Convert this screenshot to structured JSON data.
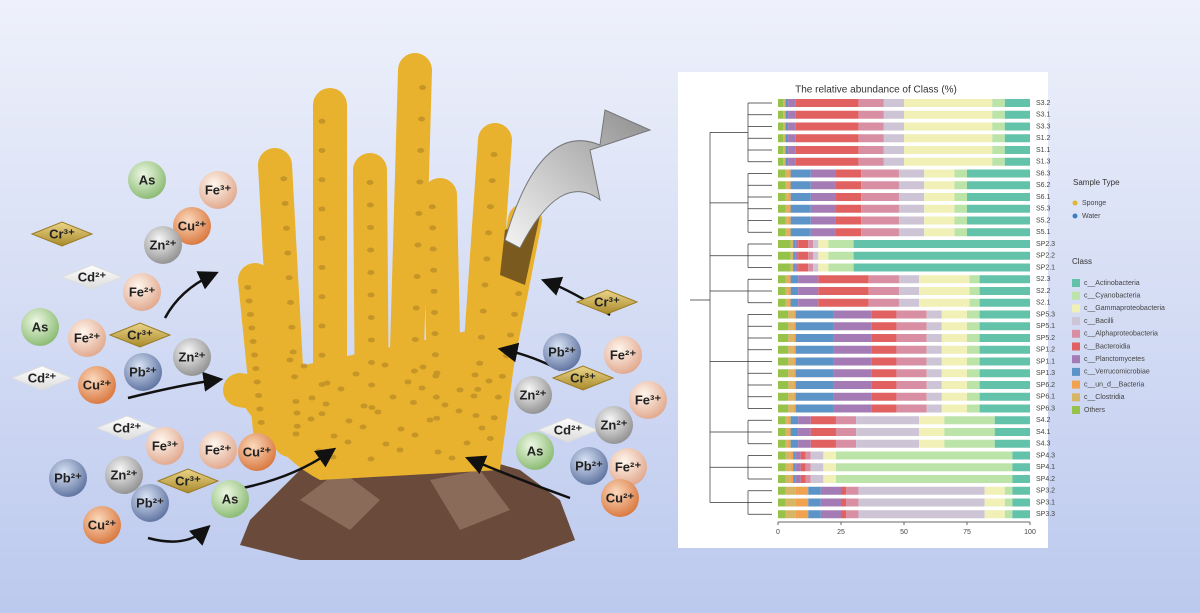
{
  "illustration": {
    "ions": [
      "As",
      "Fe³⁺",
      "Cu²⁺",
      "Cr³⁺",
      "Zn²⁺",
      "Cd²⁺",
      "Fe²⁺",
      "As",
      "Fe²⁺",
      "Cr³⁺",
      "Zn²⁺",
      "Pb²⁺",
      "Cd²⁺",
      "Cu²⁺",
      "Cd²⁺",
      "Fe³⁺",
      "Fe²⁺",
      "Cu²⁺",
      "Pb²⁺",
      "Zn²⁺",
      "Cr³⁺",
      "Pb²⁺",
      "As",
      "Cu²⁺",
      "Cr³⁺",
      "Pb²⁺",
      "Fe²⁺",
      "Cr³⁺",
      "Zn²⁺",
      "Fe³⁺",
      "Cd²⁺",
      "Zn²⁺",
      "As",
      "Pb²⁺",
      "Fe²⁺",
      "Cu²⁺"
    ]
  },
  "chart_data": {
    "type": "bar",
    "orientation": "horizontal",
    "stacked": true,
    "title": "The relative abundance of Class (%)",
    "categories": [
      "S3.2",
      "S3.1",
      "S3.3",
      "S1.2",
      "S1.1",
      "S1.3",
      "S6.3",
      "S6.2",
      "S6.1",
      "S5.3",
      "S5.2",
      "S5.1",
      "SP2.3",
      "SP2.2",
      "SP2.1",
      "S2.3",
      "S2.2",
      "S2.1",
      "SP5.3",
      "SP5.1",
      "SP5.2",
      "SP1.2",
      "SP1.1",
      "SP1.3",
      "SP6.2",
      "SP6.1",
      "SP6.3",
      "S4.2",
      "S4.1",
      "S4.3",
      "SP4.3",
      "SP4.1",
      "SP4.2",
      "SP3.2",
      "SP3.1",
      "SP3.3"
    ],
    "xlim": [
      0,
      100
    ],
    "xticks": [
      0,
      25,
      50,
      75,
      100
    ],
    "sample_type_legend": {
      "title": "Sample Type",
      "items": [
        {
          "name": "Sponge",
          "color": "#e3b52b"
        },
        {
          "name": "Water",
          "color": "#3d7fc4"
        }
      ]
    },
    "legend_title": "Class",
    "series": [
      {
        "name": "c__Actinobacteria",
        "color": "#63c3aa",
        "values": [
          10,
          10,
          10,
          10,
          10,
          10,
          25,
          25,
          25,
          25,
          25,
          25,
          70,
          70,
          70,
          20,
          20,
          20,
          20,
          20,
          20,
          20,
          20,
          20,
          20,
          20,
          20,
          14,
          14,
          14,
          7,
          7,
          7,
          7,
          7,
          7
        ]
      },
      {
        "name": "c__Cyanobacteria",
        "color": "#bde4a8",
        "values": [
          5,
          5,
          5,
          5,
          5,
          5,
          5,
          5,
          5,
          5,
          5,
          5,
          10,
          10,
          10,
          4,
          4,
          4,
          5,
          5,
          5,
          5,
          5,
          5,
          5,
          5,
          5,
          20,
          20,
          20,
          70,
          70,
          70,
          3,
          3,
          3
        ]
      },
      {
        "name": "c__Gammaproteobacteria",
        "color": "#f1f0b6",
        "values": [
          35,
          35,
          35,
          35,
          35,
          35,
          12,
          12,
          12,
          12,
          12,
          12,
          4,
          4,
          4,
          20,
          20,
          20,
          10,
          10,
          10,
          10,
          10,
          10,
          10,
          10,
          10,
          10,
          10,
          10,
          5,
          5,
          5,
          8,
          8,
          8
        ]
      },
      {
        "name": "c__Bacilli",
        "color": "#cdc4d6",
        "values": [
          8,
          8,
          8,
          8,
          8,
          8,
          10,
          10,
          10,
          10,
          10,
          10,
          2,
          2,
          2,
          8,
          8,
          8,
          6,
          6,
          6,
          6,
          6,
          6,
          6,
          6,
          6,
          25,
          25,
          25,
          5,
          5,
          5,
          50,
          50,
          50
        ]
      },
      {
        "name": "c__Alphaproteobacteria",
        "color": "#d98fa3",
        "values": [
          10,
          10,
          10,
          10,
          10,
          10,
          15,
          15,
          15,
          15,
          15,
          15,
          2,
          2,
          2,
          12,
          12,
          12,
          12,
          12,
          12,
          12,
          12,
          12,
          12,
          12,
          12,
          8,
          8,
          8,
          2,
          2,
          2,
          5,
          5,
          5
        ]
      },
      {
        "name": "c__Bacteroidia",
        "color": "#e0615f",
        "values": [
          25,
          25,
          25,
          25,
          25,
          25,
          10,
          10,
          10,
          10,
          10,
          10,
          4,
          4,
          4,
          20,
          20,
          20,
          10,
          10,
          10,
          10,
          10,
          10,
          10,
          10,
          10,
          10,
          10,
          10,
          2,
          2,
          2,
          2,
          2,
          2
        ]
      },
      {
        "name": "c__Planctomycetes",
        "color": "#a57bb6",
        "values": [
          3,
          3,
          3,
          3,
          3,
          3,
          10,
          10,
          10,
          10,
          10,
          10,
          1,
          1,
          1,
          8,
          8,
          8,
          15,
          15,
          15,
          15,
          15,
          15,
          15,
          15,
          15,
          5,
          5,
          5,
          2,
          2,
          2,
          8,
          8,
          8
        ]
      },
      {
        "name": "c__Verrucomicrobiae",
        "color": "#5c94c7",
        "values": [
          1,
          1,
          1,
          1,
          1,
          1,
          8,
          8,
          8,
          8,
          8,
          8,
          1,
          1,
          1,
          3,
          3,
          3,
          15,
          15,
          15,
          15,
          15,
          15,
          15,
          15,
          15,
          3,
          3,
          3,
          1,
          1,
          1,
          5,
          5,
          5
        ]
      },
      {
        "name": "c__un_d__Bacteria",
        "color": "#f1a24f",
        "values": [
          0,
          0,
          0,
          0,
          0,
          0,
          1,
          1,
          1,
          1,
          1,
          1,
          0,
          0,
          0,
          1,
          1,
          1,
          1,
          1,
          1,
          1,
          1,
          1,
          1,
          1,
          1,
          1,
          1,
          1,
          1,
          1,
          1,
          5,
          5,
          5
        ]
      },
      {
        "name": "c__Clostridia",
        "color": "#d6b564",
        "values": [
          1,
          1,
          1,
          1,
          1,
          1,
          1,
          1,
          1,
          1,
          1,
          1,
          1,
          1,
          1,
          1,
          1,
          1,
          2,
          2,
          2,
          2,
          2,
          2,
          2,
          2,
          2,
          1,
          1,
          1,
          2,
          2,
          2,
          4,
          4,
          4
        ]
      },
      {
        "name": "Others",
        "color": "#96c24a",
        "values": [
          2,
          2,
          2,
          2,
          2,
          2,
          3,
          3,
          3,
          3,
          3,
          3,
          5,
          5,
          5,
          3,
          3,
          3,
          4,
          4,
          4,
          4,
          4,
          4,
          4,
          4,
          4,
          3,
          3,
          3,
          3,
          3,
          3,
          3,
          3,
          3
        ]
      }
    ]
  }
}
